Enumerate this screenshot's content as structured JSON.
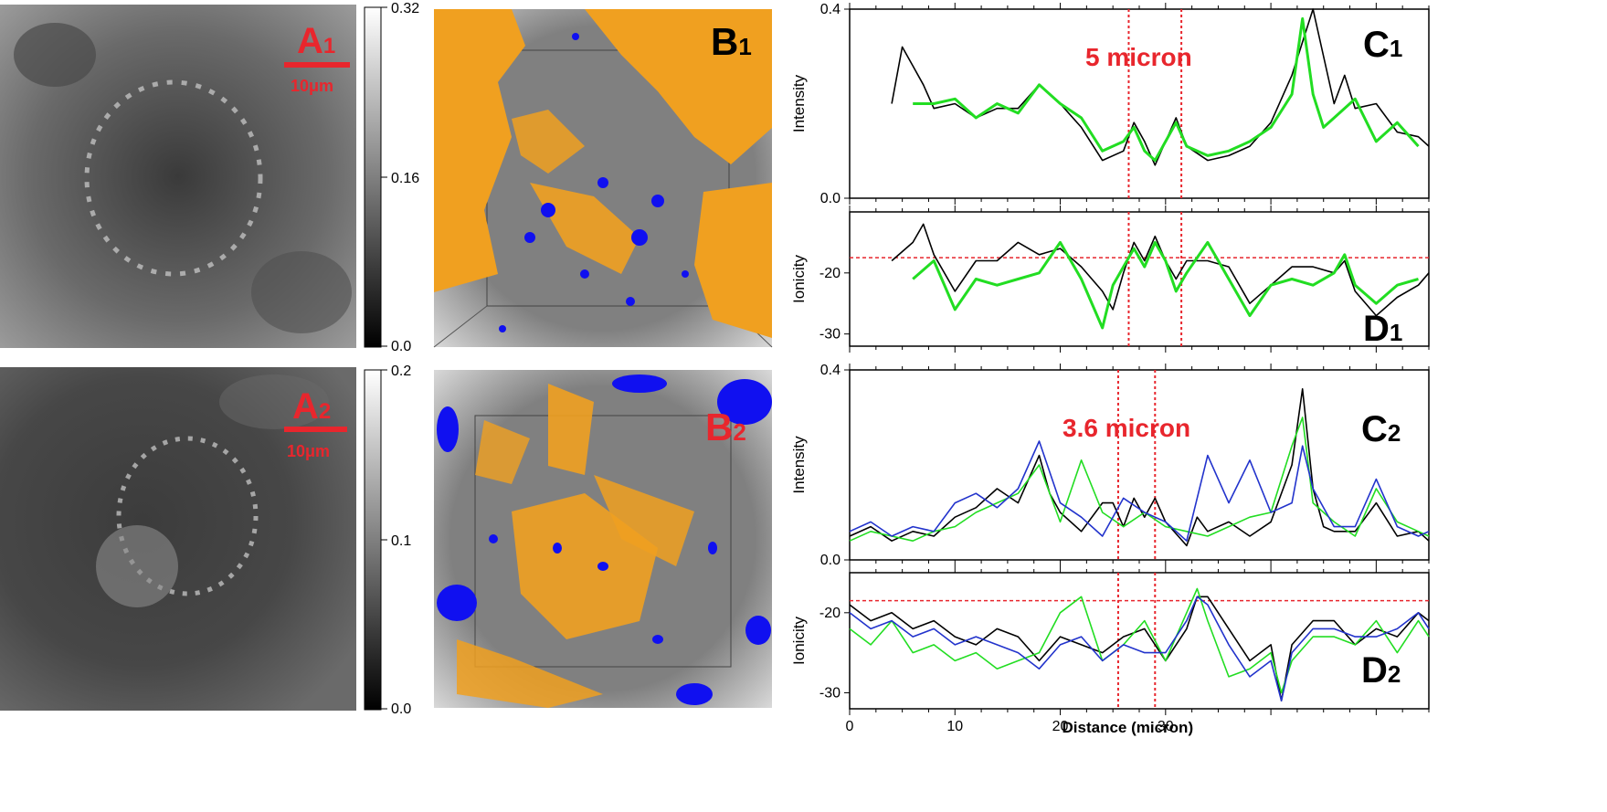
{
  "panels": {
    "a1": {
      "label": "A",
      "sub": "1",
      "scale": "10μm"
    },
    "a2": {
      "label": "A",
      "sub": "2",
      "scale": "10μm"
    },
    "b1": {
      "label": "B",
      "sub": "1"
    },
    "b2": {
      "label": "B",
      "sub": "2"
    },
    "c1": {
      "label": "C",
      "sub": "1",
      "annotation": "5 micron"
    },
    "c2": {
      "label": "C",
      "sub": "2",
      "annotation": "3.6 micron"
    },
    "d1": {
      "label": "D",
      "sub": "1"
    },
    "d2": {
      "label": "D",
      "sub": "2"
    }
  },
  "colorbars": {
    "cb1": {
      "ticks": [
        "0.32",
        "0.16",
        "0.0"
      ]
    },
    "cb2": {
      "ticks": [
        "0.2",
        "0.1",
        "0.0"
      ]
    }
  },
  "colors": {
    "label_red": "#e8262d",
    "green": "#22dd22",
    "blue": "#2233cc",
    "black": "#000000",
    "orange": "#f0a020",
    "deep_blue": "#1010f0"
  },
  "chart_data": [
    {
      "id": "c1",
      "type": "line",
      "ylabel": "Intensity",
      "ylim": [
        0,
        0.4
      ],
      "yticks": [
        "0.0",
        "0.4"
      ],
      "xlim": [
        0,
        55
      ],
      "markers_x": [
        26.5,
        31.5
      ],
      "series": [
        {
          "name": "black",
          "color": "#000000",
          "x": [
            4,
            5,
            6,
            7,
            8,
            10,
            12,
            14,
            16,
            18,
            20,
            22,
            24,
            26,
            27,
            28,
            29,
            30,
            31,
            32,
            34,
            36,
            38,
            40,
            42,
            44,
            46,
            47,
            48,
            50,
            52,
            54,
            55
          ],
          "y": [
            0.2,
            0.32,
            0.28,
            0.24,
            0.19,
            0.2,
            0.17,
            0.19,
            0.19,
            0.24,
            0.2,
            0.15,
            0.08,
            0.1,
            0.16,
            0.12,
            0.07,
            0.12,
            0.17,
            0.11,
            0.08,
            0.09,
            0.11,
            0.16,
            0.26,
            0.4,
            0.2,
            0.26,
            0.19,
            0.2,
            0.14,
            0.13,
            0.11
          ]
        },
        {
          "name": "green",
          "color": "#22dd22",
          "x": [
            6,
            8,
            10,
            12,
            14,
            16,
            18,
            20,
            22,
            24,
            26,
            27,
            28,
            29,
            30,
            31,
            32,
            34,
            36,
            38,
            40,
            42,
            43,
            44,
            45,
            46,
            48,
            50,
            52,
            54
          ],
          "y": [
            0.2,
            0.2,
            0.21,
            0.17,
            0.2,
            0.18,
            0.24,
            0.2,
            0.17,
            0.1,
            0.12,
            0.15,
            0.1,
            0.08,
            0.12,
            0.16,
            0.11,
            0.09,
            0.1,
            0.12,
            0.15,
            0.22,
            0.38,
            0.22,
            0.15,
            0.17,
            0.21,
            0.12,
            0.16,
            0.11
          ]
        }
      ]
    },
    {
      "id": "d1",
      "type": "line",
      "ylabel": "Ionicity",
      "ylim": [
        -32,
        -10
      ],
      "yticks": [
        "-20",
        "-30"
      ],
      "xlim": [
        0,
        55
      ],
      "refline": -17.5,
      "markers_x": [
        26.5,
        31.5
      ],
      "series": [
        {
          "name": "black",
          "color": "#000000",
          "x": [
            4,
            6,
            7,
            8,
            10,
            12,
            14,
            16,
            18,
            20,
            22,
            24,
            25,
            26,
            27,
            28,
            29,
            30,
            31,
            32,
            34,
            36,
            38,
            40,
            42,
            44,
            46,
            47,
            48,
            50,
            52,
            54,
            55
          ],
          "y": [
            -18,
            -15,
            -12,
            -17,
            -23,
            -18,
            -18,
            -15,
            -17,
            -16,
            -19,
            -23,
            -26,
            -20,
            -15,
            -18,
            -14,
            -18,
            -21,
            -18,
            -18,
            -19,
            -25,
            -22,
            -19,
            -19,
            -20,
            -18,
            -23,
            -27,
            -24,
            -22,
            -20
          ]
        },
        {
          "name": "green",
          "color": "#22dd22",
          "x": [
            6,
            8,
            10,
            12,
            14,
            16,
            18,
            20,
            22,
            24,
            25,
            26,
            27,
            28,
            29,
            30,
            31,
            32,
            34,
            36,
            38,
            40,
            42,
            44,
            46,
            47,
            48,
            50,
            52,
            54
          ],
          "y": [
            -21,
            -18,
            -26,
            -21,
            -22,
            -21,
            -20,
            -15,
            -21,
            -29,
            -22,
            -19,
            -16,
            -19,
            -15,
            -18,
            -23,
            -20,
            -15,
            -21,
            -27,
            -22,
            -21,
            -22,
            -20,
            -17,
            -22,
            -25,
            -22,
            -21
          ]
        }
      ]
    },
    {
      "id": "c2",
      "type": "line",
      "ylabel": "Intensity",
      "ylim": [
        0,
        0.4
      ],
      "yticks": [
        "0.0",
        "0.4"
      ],
      "xlim": [
        0,
        55
      ],
      "markers_x": [
        25.5,
        29
      ],
      "series": [
        {
          "name": "black",
          "color": "#000000",
          "x": [
            0,
            2,
            4,
            6,
            8,
            10,
            12,
            14,
            16,
            18,
            19,
            20,
            22,
            24,
            25,
            26,
            27,
            28,
            29,
            30,
            32,
            33,
            34,
            36,
            38,
            40,
            42,
            43,
            44,
            45,
            46,
            48,
            50,
            52,
            54,
            55
          ],
          "y": [
            0.05,
            0.07,
            0.04,
            0.06,
            0.05,
            0.09,
            0.11,
            0.15,
            0.12,
            0.22,
            0.14,
            0.1,
            0.06,
            0.12,
            0.12,
            0.07,
            0.13,
            0.09,
            0.13,
            0.08,
            0.03,
            0.09,
            0.06,
            0.08,
            0.05,
            0.08,
            0.2,
            0.36,
            0.15,
            0.07,
            0.06,
            0.06,
            0.12,
            0.05,
            0.06,
            0.04
          ]
        },
        {
          "name": "green",
          "color": "#22dd22",
          "x": [
            0,
            2,
            4,
            6,
            8,
            10,
            12,
            14,
            16,
            18,
            20,
            22,
            24,
            26,
            28,
            30,
            32,
            34,
            36,
            38,
            40,
            42,
            43,
            44,
            46,
            48,
            50,
            52,
            54,
            55
          ],
          "y": [
            0.04,
            0.06,
            0.05,
            0.04,
            0.06,
            0.07,
            0.1,
            0.12,
            0.14,
            0.2,
            0.08,
            0.21,
            0.1,
            0.07,
            0.1,
            0.07,
            0.06,
            0.05,
            0.07,
            0.09,
            0.1,
            0.24,
            0.3,
            0.12,
            0.08,
            0.05,
            0.15,
            0.08,
            0.06,
            0.05
          ]
        },
        {
          "name": "blue",
          "color": "#2233cc",
          "x": [
            0,
            2,
            4,
            6,
            8,
            10,
            12,
            14,
            16,
            18,
            20,
            22,
            24,
            26,
            28,
            30,
            32,
            34,
            36,
            38,
            40,
            42,
            43,
            44,
            46,
            48,
            50,
            52,
            54,
            55
          ],
          "y": [
            0.06,
            0.08,
            0.05,
            0.07,
            0.06,
            0.12,
            0.14,
            0.11,
            0.15,
            0.25,
            0.12,
            0.09,
            0.05,
            0.13,
            0.1,
            0.08,
            0.04,
            0.22,
            0.12,
            0.21,
            0.1,
            0.12,
            0.24,
            0.15,
            0.07,
            0.07,
            0.17,
            0.07,
            0.05,
            0.06
          ]
        }
      ]
    },
    {
      "id": "d2",
      "type": "line",
      "ylabel": "Ionicity",
      "ylim": [
        -32,
        -15
      ],
      "yticks": [
        "-20",
        "-30"
      ],
      "xlim": [
        0,
        55
      ],
      "refline": -18.5,
      "markers_x": [
        25.5,
        29
      ],
      "xticks": [
        "0",
        "10",
        "20",
        "30"
      ],
      "xlabel": "Distance (micron)",
      "series": [
        {
          "name": "black",
          "color": "#000000",
          "x": [
            0,
            2,
            4,
            6,
            8,
            10,
            12,
            14,
            16,
            18,
            20,
            22,
            24,
            26,
            28,
            30,
            32,
            33,
            34,
            36,
            38,
            40,
            41,
            42,
            44,
            46,
            48,
            50,
            52,
            54,
            55
          ],
          "y": [
            -19,
            -21,
            -20,
            -22,
            -21,
            -23,
            -24,
            -22,
            -23,
            -26,
            -23,
            -24,
            -25,
            -23,
            -22,
            -26,
            -22,
            -18,
            -18,
            -22,
            -26,
            -24,
            -31,
            -24,
            -21,
            -21,
            -24,
            -22,
            -23,
            -20,
            -21
          ]
        },
        {
          "name": "green",
          "color": "#22dd22",
          "x": [
            0,
            2,
            4,
            6,
            8,
            10,
            12,
            14,
            16,
            18,
            20,
            22,
            24,
            26,
            28,
            30,
            32,
            33,
            34,
            36,
            38,
            40,
            41,
            42,
            44,
            46,
            48,
            50,
            52,
            54,
            55
          ],
          "y": [
            -22,
            -24,
            -21,
            -25,
            -24,
            -26,
            -25,
            -27,
            -26,
            -25,
            -20,
            -18,
            -26,
            -24,
            -21,
            -26,
            -20,
            -17,
            -21,
            -28,
            -27,
            -25,
            -30,
            -26,
            -23,
            -23,
            -24,
            -21,
            -25,
            -21,
            -23
          ]
        },
        {
          "name": "blue",
          "color": "#2233cc",
          "x": [
            0,
            2,
            4,
            6,
            8,
            10,
            12,
            14,
            16,
            18,
            20,
            22,
            24,
            26,
            28,
            30,
            32,
            33,
            34,
            36,
            38,
            40,
            41,
            42,
            44,
            46,
            48,
            50,
            52,
            54,
            55
          ],
          "y": [
            -20,
            -22,
            -21,
            -23,
            -22,
            -24,
            -23,
            -24,
            -25,
            -27,
            -24,
            -23,
            -26,
            -24,
            -25,
            -25,
            -21,
            -18,
            -19,
            -24,
            -28,
            -26,
            -31,
            -25,
            -22,
            -22,
            -23,
            -23,
            -22,
            -20,
            -22
          ]
        }
      ]
    }
  ]
}
